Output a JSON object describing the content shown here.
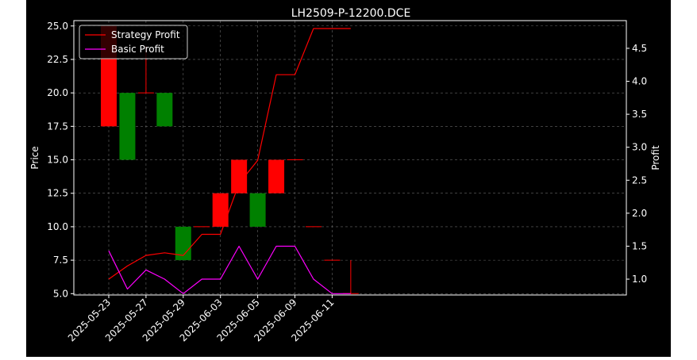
{
  "chart_data": {
    "type": "candlestick+line",
    "title": "LH2509-P-12200.DCE",
    "xlabel": "",
    "ylabel_left": "Price",
    "ylabel_right": "Profit",
    "ylim_left": [
      4.9,
      25.4
    ],
    "ylim_right": [
      0.76,
      4.92
    ],
    "grid": true,
    "legend_position": "upper-left",
    "colors": {
      "up": "#ff0000",
      "down": "#008000",
      "strategy": "#ff0000",
      "basic": "#ff00ff",
      "background": "#000000"
    },
    "x_ticks": [
      "2025-05-23",
      "2025-05-27",
      "2025-05-29",
      "2025-06-03",
      "2025-06-05",
      "2025-06-09",
      "2025-06-11"
    ],
    "left_ticks": [
      "5.0",
      "7.5",
      "10.0",
      "12.5",
      "15.0",
      "17.5",
      "20.0",
      "22.5",
      "25.0"
    ],
    "right_ticks": [
      "1.0",
      "1.5",
      "2.0",
      "2.5",
      "3.0",
      "3.5",
      "4.0",
      "4.5"
    ],
    "candles": [
      {
        "open": 17.5,
        "close": 25.0,
        "high": 25.0,
        "low": 17.5
      },
      {
        "open": 20.0,
        "close": 15.0,
        "high": 20.0,
        "low": 15.0
      },
      {
        "open": 20.0,
        "close": 20.0,
        "high": 23.5,
        "low": 20.0
      },
      {
        "open": 20.0,
        "close": 17.5,
        "high": 20.0,
        "low": 17.5
      },
      {
        "open": 10.0,
        "close": 7.5,
        "high": 10.0,
        "low": 7.5
      },
      {
        "open": 10.0,
        "close": 10.0,
        "high": 10.0,
        "low": 10.0
      },
      {
        "open": 10.0,
        "close": 12.5,
        "high": 12.5,
        "low": 10.0
      },
      {
        "open": 12.5,
        "close": 15.0,
        "high": 15.0,
        "low": 12.5
      },
      {
        "open": 12.5,
        "close": 10.0,
        "high": 12.5,
        "low": 10.0
      },
      {
        "open": 12.5,
        "close": 15.0,
        "high": 15.0,
        "low": 12.5
      },
      {
        "open": 15.0,
        "close": 15.0,
        "high": 15.0,
        "low": 15.0
      },
      {
        "open": 10.0,
        "close": 10.0,
        "high": 10.0,
        "low": 10.0
      },
      {
        "open": 7.5,
        "close": 7.5,
        "high": 7.5,
        "low": 7.5
      },
      {
        "open": 5.0,
        "close": 5.0,
        "high": 7.5,
        "low": 5.0
      }
    ],
    "series": [
      {
        "name": "Strategy Profit",
        "values": [
          1.0,
          1.2,
          1.36,
          1.4,
          1.36,
          1.68,
          1.68,
          2.45,
          2.8,
          4.1,
          4.1,
          4.8,
          4.8,
          4.8
        ]
      },
      {
        "name": "Basic Profit",
        "values": [
          1.43,
          0.85,
          1.14,
          1.0,
          0.78,
          1.0,
          1.0,
          1.5,
          1.0,
          1.5,
          1.5,
          1.0,
          0.78,
          0.78
        ]
      }
    ]
  }
}
